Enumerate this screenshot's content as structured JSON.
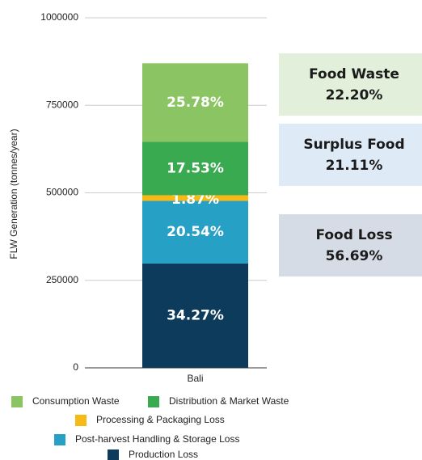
{
  "chart_data": {
    "type": "stacked_bar",
    "y_label": "FLW Generation (tonnes/year)",
    "categories": [
      "Bali"
    ],
    "series": [
      {
        "name": "Production Loss",
        "color": "#0d3b5b",
        "values": [
          298150
        ],
        "value_labels": [
          "34.27%"
        ]
      },
      {
        "name": "Post-harvest Handling & Storage Loss",
        "color": "#27a0c6",
        "values": [
          178700
        ],
        "value_labels": [
          "20.54%"
        ]
      },
      {
        "name": "Processing & Packaging Loss",
        "color": "#f6b915",
        "values": [
          16270
        ],
        "value_labels": [
          "1.87%"
        ]
      },
      {
        "name": "Distribution & Market Waste",
        "color": "#3aaa50",
        "values": [
          152510
        ],
        "value_labels": [
          "17.53%"
        ]
      },
      {
        "name": "Consumption Waste",
        "color": "#8bc462",
        "values": [
          224290
        ],
        "value_labels": [
          "25.78%"
        ]
      }
    ],
    "ylim": [
      0,
      1000000
    ],
    "yticks": [
      0,
      250000,
      500000,
      750000,
      1000000
    ],
    "grid": true,
    "annotations": [
      {
        "title": "Food Waste",
        "text": "22.20%",
        "color": "#e2efda"
      },
      {
        "title": "Surplus Food",
        "text": "21.11%",
        "color": "#deebf7"
      },
      {
        "title": "Food Loss",
        "text": "56.69%",
        "color": "#d6dce5"
      }
    ]
  }
}
